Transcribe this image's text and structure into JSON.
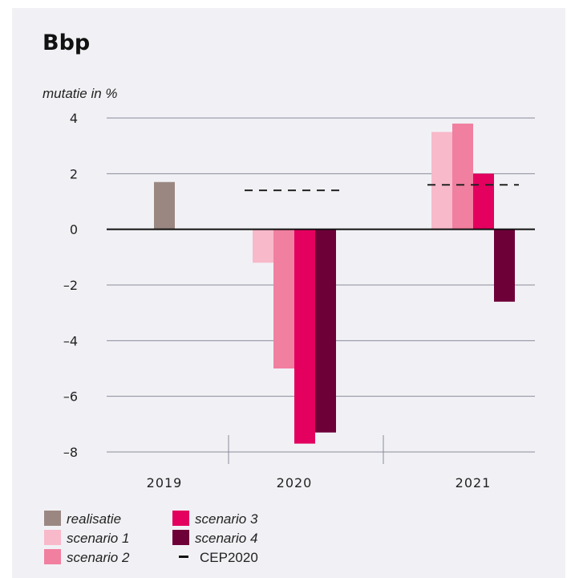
{
  "chart_data": {
    "type": "bar",
    "title": "Bbp",
    "ylabel": "mutatie in %",
    "xlabel": "",
    "ylim": [
      -8,
      4
    ],
    "yticks": [
      4,
      2,
      0,
      -2,
      -4,
      -6,
      -8
    ],
    "ytick_labels": [
      "4",
      "2",
      "0",
      "–2",
      "–4",
      "–6",
      "–8"
    ],
    "grid": true,
    "legend_position": "bottom",
    "categories": [
      "2019",
      "2020",
      "2021"
    ],
    "series": [
      {
        "name": "realisatie",
        "color": "#9b8782",
        "values": [
          1.7,
          null,
          null
        ]
      },
      {
        "name": "scenario 1",
        "color": "#f8b9ca",
        "values": [
          null,
          -1.2,
          3.5
        ]
      },
      {
        "name": "scenario 2",
        "color": "#f17fa0",
        "values": [
          null,
          -5.0,
          3.8
        ]
      },
      {
        "name": "scenario 3",
        "color": "#e3005f",
        "values": [
          null,
          -7.7,
          2.0
        ]
      },
      {
        "name": "scenario 4",
        "color": "#6e0038",
        "values": [
          null,
          -7.3,
          -2.6
        ]
      }
    ],
    "reference": {
      "name": "CEP2020",
      "style": "dashed",
      "color": "#222222",
      "values": [
        null,
        1.4,
        1.6
      ]
    }
  },
  "legend": {
    "items": [
      {
        "label": "realisatie",
        "color": "#9b8782",
        "kind": "swatch"
      },
      {
        "label": "scenario 1",
        "color": "#f8b9ca",
        "kind": "swatch"
      },
      {
        "label": "scenario 2",
        "color": "#f17fa0",
        "kind": "swatch"
      },
      {
        "label": "scenario 3",
        "color": "#e3005f",
        "kind": "swatch"
      },
      {
        "label": "scenario 4",
        "color": "#6e0038",
        "kind": "swatch"
      },
      {
        "label": "CEP2020",
        "color": "#111111",
        "kind": "line"
      }
    ]
  }
}
